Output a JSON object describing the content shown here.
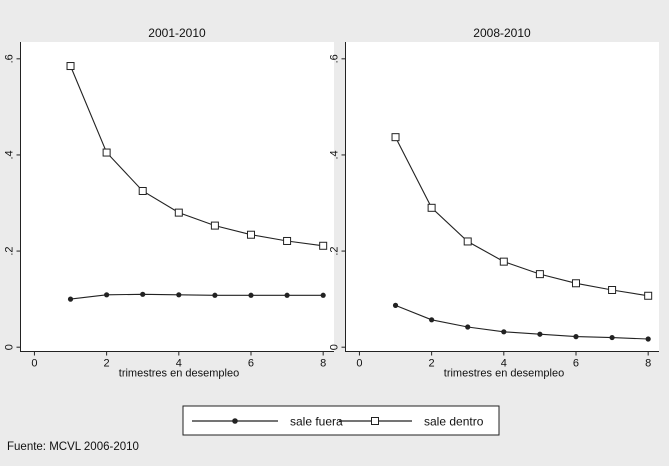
{
  "chart_data": [
    {
      "type": "line",
      "title": "2001-2010",
      "xlabel": "trimestres en desempleo",
      "ylabel": "",
      "x": [
        1,
        2,
        3,
        4,
        5,
        6,
        7,
        8
      ],
      "xticks": [
        0,
        2,
        4,
        6,
        8
      ],
      "xtick_labels": [
        "0",
        "2",
        "4",
        "6",
        "8"
      ],
      "yticks": [
        0,
        0.2,
        0.4,
        0.6
      ],
      "ytick_labels": [
        "0",
        ".2",
        ".4",
        ".6"
      ],
      "xlim": [
        -0.4,
        8.3
      ],
      "ylim": [
        -0.01,
        0.635
      ],
      "grid": false,
      "series": [
        {
          "name": "sale fuera",
          "marker": "dot",
          "values": [
            0.1,
            0.109,
            0.11,
            0.109,
            0.108,
            0.108,
            0.108,
            0.108
          ]
        },
        {
          "name": "sale dentro",
          "marker": "square",
          "values": [
            0.585,
            0.405,
            0.325,
            0.28,
            0.253,
            0.234,
            0.221,
            0.211
          ]
        }
      ]
    },
    {
      "type": "line",
      "title": "2008-2010",
      "xlabel": "trimestres en desempleo",
      "ylabel": "",
      "x": [
        1,
        2,
        3,
        4,
        5,
        6,
        7,
        8
      ],
      "xticks": [
        0,
        2,
        4,
        6,
        8
      ],
      "xtick_labels": [
        "0",
        "2",
        "4",
        "6",
        "8"
      ],
      "yticks": [
        0,
        0.2,
        0.4,
        0.6
      ],
      "ytick_labels": [
        "0",
        ".2",
        ".4",
        ".6"
      ],
      "xlim": [
        -0.4,
        8.3
      ],
      "ylim": [
        -0.01,
        0.635
      ],
      "grid": false,
      "series": [
        {
          "name": "sale fuera",
          "marker": "dot",
          "values": [
            0.087,
            0.057,
            0.042,
            0.032,
            0.027,
            0.022,
            0.02,
            0.017
          ]
        },
        {
          "name": "sale dentro",
          "marker": "square",
          "values": [
            0.437,
            0.29,
            0.22,
            0.178,
            0.152,
            0.133,
            0.119,
            0.107
          ]
        }
      ]
    }
  ],
  "legend": {
    "placement": "bottom-center",
    "items": [
      {
        "label": "sale fuera",
        "marker": "dot"
      },
      {
        "label": "sale dentro",
        "marker": "square"
      }
    ]
  },
  "note": "Fuente: MCVL 2006-2010",
  "colors": {
    "background": "#ebebeb",
    "plot_bg": "#ffffff",
    "line": "#222222"
  }
}
